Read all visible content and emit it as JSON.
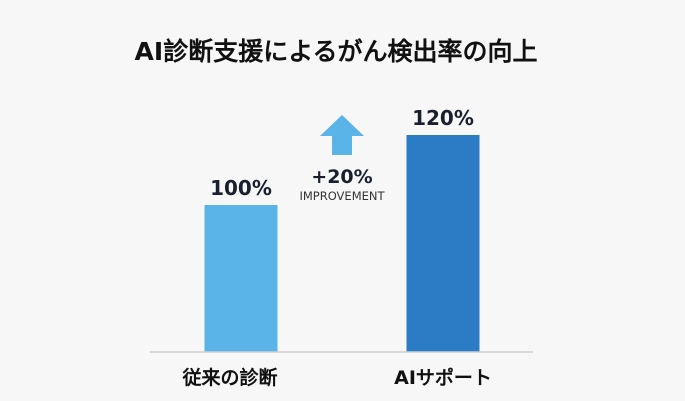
{
  "chart_data": {
    "type": "bar",
    "title": "AI診断支援によるがん検出率の向上",
    "categories": [
      "従来の診断",
      "AIサポート"
    ],
    "values": [
      100,
      120
    ],
    "data_labels": [
      "100%",
      "120%"
    ],
    "colors": [
      "#5ab4e8",
      "#2b7cc4"
    ],
    "ylim": [
      58,
      130
    ],
    "grid": false,
    "annotation": {
      "value": "+20%",
      "label": "IMPROVEMENT",
      "icon": "up-arrow-icon",
      "color": "#5ab4e8"
    }
  }
}
